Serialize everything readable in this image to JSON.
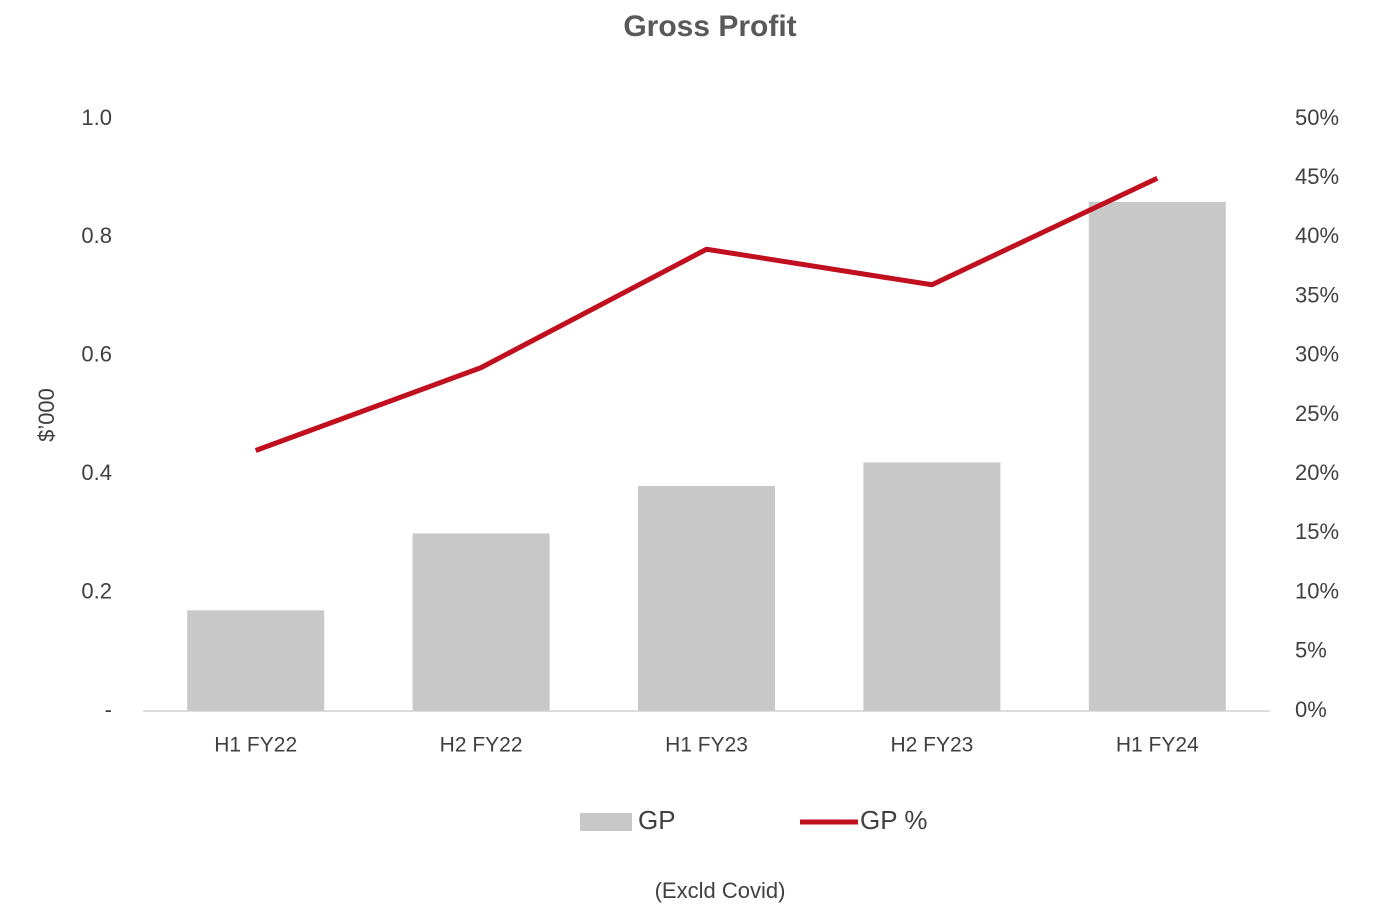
{
  "chart_data": {
    "type": "bar_line",
    "title": "Gross Profit",
    "y_label": "$’000",
    "annotation": "(Excld Covid)",
    "categories": [
      "H1 FY22",
      "H2 FY22",
      "H1 FY23",
      "H2 FY23",
      "H1 FY24"
    ],
    "series": [
      {
        "name": "GP",
        "type": "bar",
        "color": "#c8c8c8",
        "values": [
          0.17,
          0.3,
          0.38,
          0.42,
          0.86
        ]
      },
      {
        "name": "GP %",
        "type": "line",
        "axis": "y2",
        "color": "#c00f1e",
        "values": [
          22,
          29,
          39,
          36,
          45
        ]
      }
    ],
    "ylim": [
      0,
      1
    ],
    "yticks": [
      {
        "value": 0,
        "label": "-"
      },
      0.2,
      0.4,
      0.6,
      0.8,
      {
        "value": 1,
        "label": "1.0"
      }
    ],
    "y2lim": [
      0,
      50
    ],
    "y2ticks": [
      {
        "value": 0,
        "label": "0%"
      },
      {
        "value": 5,
        "label": "5%"
      },
      {
        "value": 10,
        "label": "10%"
      },
      {
        "value": 15,
        "label": "15%"
      },
      {
        "value": 20,
        "label": "20%"
      },
      {
        "value": 25,
        "label": "25%"
      },
      {
        "value": 30,
        "label": "30%"
      },
      {
        "value": 35,
        "label": "35%"
      },
      {
        "value": 40,
        "label": "40%"
      },
      {
        "value": 45,
        "label": "45%"
      },
      {
        "value": 50,
        "label": "50%"
      }
    ],
    "legend": "bottom"
  }
}
